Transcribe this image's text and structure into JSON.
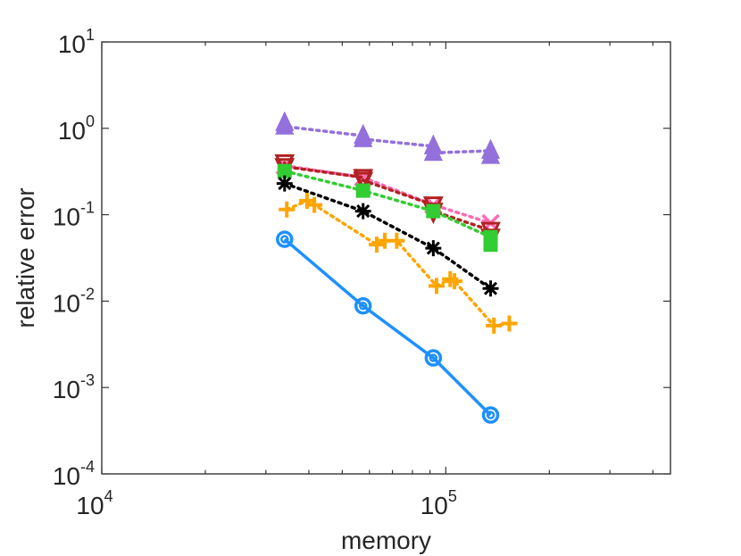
{
  "chart_data": {
    "type": "scatter",
    "xscale": "log",
    "yscale": "log",
    "xlim": [
      10000,
      450000
    ],
    "ylim": [
      0.0001,
      10
    ],
    "xlabel": "memory",
    "ylabel": "relative error",
    "grid": false,
    "box": true,
    "xticks": [
      {
        "value": 10000,
        "base": "10",
        "exp": "4"
      },
      {
        "value": 100000,
        "base": "10",
        "exp": "5"
      }
    ],
    "yticks": [
      {
        "value": 10,
        "base": "10",
        "exp": "1"
      },
      {
        "value": 1,
        "base": "10",
        "exp": "0"
      },
      {
        "value": 0.1,
        "base": "10",
        "exp": "-1"
      },
      {
        "value": 0.01,
        "base": "10",
        "exp": "-2"
      },
      {
        "value": 0.001,
        "base": "10",
        "exp": "-3"
      },
      {
        "value": 0.0001,
        "base": "10",
        "exp": "-4"
      }
    ],
    "series": [
      {
        "name": "series-purple-triangle",
        "color": "#9370DB",
        "marker": "triangle-up",
        "line": "dotted",
        "points": [
          [
            34000,
            1.15
          ],
          [
            34000,
            1.05
          ],
          [
            57500,
            0.82
          ],
          [
            57500,
            0.75
          ],
          [
            92000,
            0.62
          ],
          [
            92000,
            0.52
          ],
          [
            135000,
            0.55
          ],
          [
            135000,
            0.48
          ]
        ]
      },
      {
        "name": "series-pink-x",
        "color": "#FF69B4",
        "marker": "x",
        "line": "dotted",
        "points": [
          [
            34000,
            0.37
          ],
          [
            57500,
            0.27
          ],
          [
            92000,
            0.13
          ],
          [
            135000,
            0.08
          ]
        ]
      },
      {
        "name": "series-darkred-triangle",
        "color": "#B22222",
        "marker": "triangle-down",
        "line": "dotted",
        "points": [
          [
            34000,
            0.4
          ],
          [
            34000,
            0.36
          ],
          [
            57500,
            0.27
          ],
          [
            57500,
            0.25
          ],
          [
            92000,
            0.13
          ],
          [
            92000,
            0.11
          ],
          [
            135000,
            0.066
          ],
          [
            135000,
            0.055
          ]
        ]
      },
      {
        "name": "series-green-square",
        "color": "#32CD32",
        "marker": "square",
        "line": "dotted",
        "points": [
          [
            34000,
            0.32
          ],
          [
            57500,
            0.19
          ],
          [
            92000,
            0.11
          ],
          [
            135000,
            0.055
          ],
          [
            135000,
            0.045
          ]
        ]
      },
      {
        "name": "series-black-star",
        "color": "#000000",
        "marker": "asterisk",
        "line": "dotted",
        "points": [
          [
            34000,
            0.23
          ],
          [
            57500,
            0.11
          ],
          [
            92000,
            0.041
          ],
          [
            135000,
            0.014
          ]
        ]
      },
      {
        "name": "series-orange-plus",
        "color": "#FFA500",
        "marker": "plus",
        "line": "dotted",
        "points": [
          [
            34500,
            0.115
          ],
          [
            39500,
            0.145
          ],
          [
            41500,
            0.13
          ],
          [
            63000,
            0.045
          ],
          [
            66500,
            0.05
          ],
          [
            72000,
            0.05
          ],
          [
            94000,
            0.015
          ],
          [
            103000,
            0.018
          ],
          [
            106000,
            0.017
          ],
          [
            138000,
            0.0052
          ],
          [
            153000,
            0.0055
          ]
        ]
      },
      {
        "name": "series-blue-circle",
        "color": "#1E90FF",
        "marker": "circle",
        "line": "solid",
        "points": [
          [
            34000,
            0.052
          ],
          [
            57500,
            0.0088
          ],
          [
            92000,
            0.0022
          ],
          [
            135000,
            0.00048
          ]
        ]
      }
    ]
  }
}
